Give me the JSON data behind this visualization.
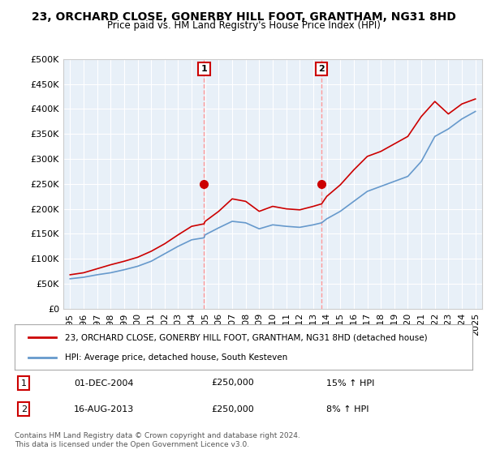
{
  "title": "23, ORCHARD CLOSE, GONERBY HILL FOOT, GRANTHAM, NG31 8HD",
  "subtitle": "Price paid vs. HM Land Registry's House Price Index (HPI)",
  "legend_line1": "23, ORCHARD CLOSE, GONERBY HILL FOOT, GRANTHAM, NG31 8HD (detached house)",
  "legend_line2": "HPI: Average price, detached house, South Kesteven",
  "annotation1_label": "1",
  "annotation1_date": "01-DEC-2004",
  "annotation1_price": "£250,000",
  "annotation1_hpi": "15% ↑ HPI",
  "annotation2_label": "2",
  "annotation2_date": "16-AUG-2013",
  "annotation2_price": "£250,000",
  "annotation2_hpi": "8% ↑ HPI",
  "footer": "Contains HM Land Registry data © Crown copyright and database right 2024.\nThis data is licensed under the Open Government Licence v3.0.",
  "red_color": "#cc0000",
  "blue_color": "#6699cc",
  "vline_color": "#ff9999",
  "marker_color": "#cc0000",
  "background_plot": "#e8f0f8",
  "grid_color": "#ffffff",
  "ylim": [
    0,
    500000
  ],
  "yticks": [
    0,
    50000,
    100000,
    150000,
    200000,
    250000,
    300000,
    350000,
    400000,
    450000,
    500000
  ],
  "hpi_years": [
    1995,
    1996,
    1997,
    1998,
    1999,
    2000,
    2001,
    2002,
    2003,
    2004,
    2004.92,
    2005,
    2006,
    2007,
    2008,
    2009,
    2010,
    2011,
    2012,
    2013,
    2013.62,
    2014,
    2015,
    2016,
    2017,
    2018,
    2019,
    2020,
    2021,
    2022,
    2023,
    2024,
    2025
  ],
  "hpi_values": [
    60000,
    63000,
    68000,
    72000,
    78000,
    85000,
    95000,
    110000,
    125000,
    138000,
    142000,
    148000,
    162000,
    175000,
    172000,
    160000,
    168000,
    165000,
    163000,
    168000,
    172000,
    180000,
    195000,
    215000,
    235000,
    245000,
    255000,
    265000,
    295000,
    345000,
    360000,
    380000,
    395000
  ],
  "red_years": [
    1995,
    1996,
    1997,
    1998,
    1999,
    2000,
    2001,
    2002,
    2003,
    2004,
    2004.92,
    2005,
    2006,
    2007,
    2008,
    2009,
    2010,
    2011,
    2012,
    2013,
    2013.62,
    2014,
    2015,
    2016,
    2017,
    2018,
    2019,
    2020,
    2021,
    2022,
    2023,
    2024,
    2025
  ],
  "red_values": [
    68000,
    72000,
    80000,
    88000,
    95000,
    103000,
    115000,
    130000,
    148000,
    165000,
    170000,
    175000,
    195000,
    220000,
    215000,
    195000,
    205000,
    200000,
    198000,
    205000,
    210000,
    225000,
    248000,
    278000,
    305000,
    315000,
    330000,
    345000,
    385000,
    415000,
    390000,
    410000,
    420000
  ],
  "sale1_x": 2004.92,
  "sale1_y": 250000,
  "sale2_x": 2013.62,
  "sale2_y": 250000,
  "xtick_years": [
    1995,
    1996,
    1997,
    1998,
    1999,
    2000,
    2001,
    2002,
    2003,
    2004,
    2005,
    2006,
    2007,
    2008,
    2009,
    2010,
    2011,
    2012,
    2013,
    2014,
    2015,
    2016,
    2017,
    2018,
    2019,
    2020,
    2021,
    2022,
    2023,
    2024,
    2025
  ]
}
